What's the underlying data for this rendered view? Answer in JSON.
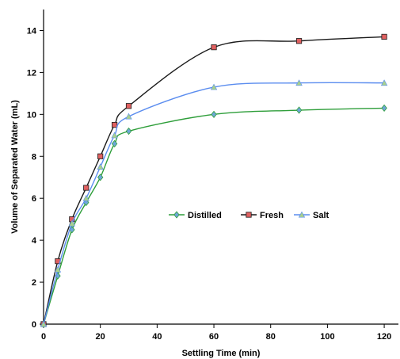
{
  "chart_data": {
    "type": "line",
    "title": "",
    "xlabel": "Settling Time (min)",
    "ylabel": "Volume of Separated Water (mL)",
    "xlim": [
      0,
      125
    ],
    "ylim": [
      0,
      15
    ],
    "x_ticks": [
      0,
      20,
      40,
      60,
      80,
      100,
      120
    ],
    "y_ticks": [
      0,
      2,
      4,
      6,
      8,
      10,
      12,
      14
    ],
    "grid": false,
    "legend_position": "center",
    "series": [
      {
        "name": "Distilled",
        "color": "#2e9e3a",
        "marker_color": "#6ea6d8",
        "marker": "diamond",
        "x": [
          0,
          5,
          10,
          15,
          20,
          25,
          30,
          60,
          90,
          120
        ],
        "y": [
          0,
          2.3,
          4.5,
          5.8,
          7.0,
          8.6,
          9.2,
          10.0,
          10.2,
          10.3
        ]
      },
      {
        "name": "Fresh",
        "color": "#1a1a1a",
        "marker_color": "#e06060",
        "marker": "square",
        "x": [
          0,
          5,
          10,
          15,
          20,
          25,
          30,
          60,
          90,
          120
        ],
        "y": [
          0,
          3.0,
          5.0,
          6.5,
          8.0,
          9.5,
          10.4,
          13.2,
          13.5,
          13.7
        ]
      },
      {
        "name": "Salt",
        "color": "#5b8def",
        "marker_color": "#a8d08d",
        "marker": "triangle",
        "x": [
          0,
          5,
          10,
          15,
          20,
          25,
          30,
          60,
          90,
          120
        ],
        "y": [
          0,
          2.6,
          4.8,
          6.0,
          7.5,
          9.0,
          9.9,
          11.3,
          11.5,
          11.5
        ]
      }
    ]
  }
}
